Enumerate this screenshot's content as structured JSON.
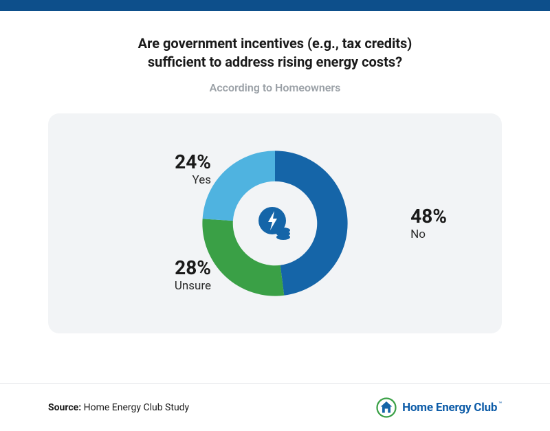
{
  "title": {
    "line1": "Are government incentives (e.g., tax credits)",
    "line2": "sufficient to address rising energy costs?",
    "fontsize": 20,
    "color": "#1a1a1a"
  },
  "subtitle": {
    "text": "According to Homeowners",
    "fontsize": 16,
    "color": "#9aa0a6"
  },
  "card": {
    "background": "#f2f4f6",
    "radius": 16
  },
  "chart": {
    "type": "donut",
    "inner_radius_ratio": 0.58,
    "start_angle_deg": 0,
    "series": [
      {
        "key": "no",
        "label": "No",
        "value": 48,
        "display": "48%",
        "color": "#1565a8"
      },
      {
        "key": "unsure",
        "label": "Unsure",
        "value": 28,
        "display": "28%",
        "color": "#3aa046"
      },
      {
        "key": "yes",
        "label": "Yes",
        "value": 24,
        "display": "24%",
        "color": "#4fb3e0"
      }
    ],
    "label_pct_fontsize": 28,
    "label_name_fontsize": 17,
    "center_icon": {
      "bolt_circle_color": "#1565a8",
      "bolt_color": "#ffffff",
      "coins_color": "#1565a8"
    }
  },
  "footer": {
    "source_prefix": "Source:",
    "source_text": "Home Energy Club Study",
    "brand_name": "Home Energy Club",
    "brand_color": "#0d5ca8",
    "brand_icon": {
      "ring_color": "#3aa046",
      "house_color": "#1565a8",
      "bg": "#ffffff"
    }
  }
}
